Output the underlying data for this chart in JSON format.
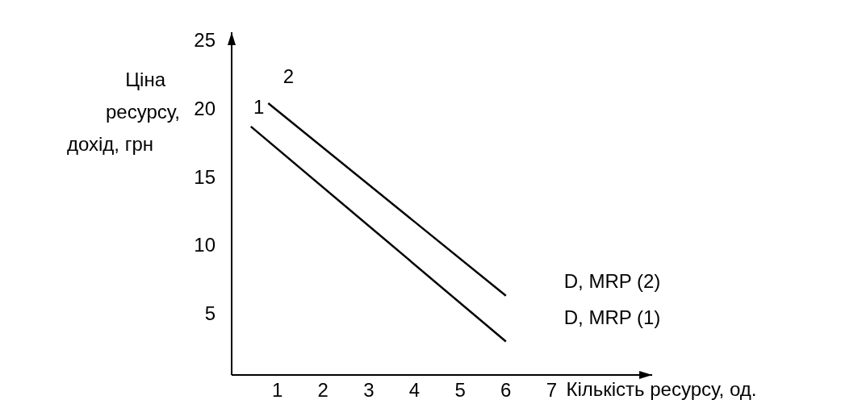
{
  "chart_data": {
    "type": "line",
    "xlabel": "Кількість ресурсу, од.",
    "ylabel": "Ціна\nресурсу,\nдохід, грн",
    "xlim": [
      0,
      9.2
    ],
    "ylim": [
      0.6,
      25.7
    ],
    "xticks": [
      1,
      2,
      3,
      4,
      5,
      6,
      7
    ],
    "yticks": [
      5,
      10,
      15,
      20,
      25
    ],
    "series": [
      {
        "name": "D, MRP (2)",
        "color": "#000000",
        "x": [
          0.8,
          6
        ],
        "values": [
          20.5,
          6.4
        ]
      },
      {
        "name": "D, MRP (1)",
        "color": "#000000",
        "x": [
          0.42,
          6
        ],
        "values": [
          18.8,
          3.05
        ]
      }
    ],
    "annotations": [
      "2",
      "1"
    ],
    "grid": false,
    "legend": false,
    "marker": "none",
    "line_style": "solid"
  }
}
